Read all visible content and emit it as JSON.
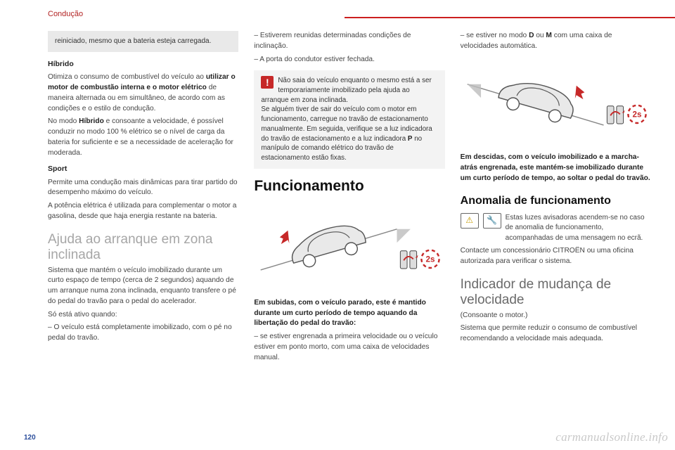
{
  "page": {
    "section_header": "Condução",
    "page_number": "120",
    "watermark": "carmanualsonline.info"
  },
  "colors": {
    "accent_red": "#cc1f1f",
    "text_red": "#b22222",
    "gray_box": "#e9e9e9",
    "warn_red": "#c62828",
    "icon_amber": "#c49a00",
    "heading_gray": "#a6a6a6",
    "page_num": "#2a4d9b"
  },
  "col1": {
    "gray1": "reiniciado, mesmo que a bateria esteja carregada.",
    "h_hibrido": "Híbrido",
    "p_hibrido1_a": "Otimiza o consumo de combustível do veículo ao ",
    "p_hibrido1_b": "utilizar o motor de combustão interna e o motor elétrico",
    "p_hibrido1_c": " de maneira alternada ou em simultâneo, de acordo com as condições e o estilo de condução.",
    "p_hibrido2_a": "No modo ",
    "p_hibrido2_b": "Híbrido",
    "p_hibrido2_c": " e consoante a velocidade, é possível conduzir no modo 100 % elétrico se o nível de carga da bateria for suficiente e se a necessidade de aceleração for moderada.",
    "h_sport": "Sport",
    "p_sport1": "Permite uma condução mais dinâmicas para tirar partido do desempenho máximo do veículo.",
    "p_sport2": "A potência elétrica é utilizada para complementar o motor a gasolina, desde que haja energia restante na bateria.",
    "h_ajuda": "Ajuda ao arranque em zona inclinada",
    "p_ajuda1": "Sistema que mantém o veículo imobilizado durante um curto espaço de tempo (cerca de 2 segundos) aquando de um arranque numa zona inclinada, enquanto transfere o pé do pedal do travão para o pedal do acelerador.",
    "p_ajuda2": "Só está ativo quando:",
    "li1": "–  O veículo está completamente imobilizado, com o pé no pedal do travão."
  },
  "col2": {
    "li2": "–  Estiverem reunidas determinadas condições de inclinação.",
    "li3": "–  A porta do condutor estiver fechada.",
    "warn_a": "Não saia do veículo enquanto o mesmo está a ser temporariamente imobilizado pela ajuda ao arranque em zona inclinada.",
    "warn_b": "Se alguém tiver de sair do veículo com o motor em funcionamento, carregue no travão de estacionamento manualmente. Em seguida, verifique se a luz indicadora do travão de estacionamento e a luz indicadora ",
    "warn_p": "P",
    "warn_c": " no manípulo de comando elétrico do travão de estacionamento estão fixas.",
    "h_func": "Funcionamento",
    "cap_up_a": "Em subidas, com o veículo parado, este é mantido durante um curto período de tempo aquando da libertação do pedal do travão:",
    "li4": "–  se estiver engrenada a primeira velocidade ou o veículo estiver em ponto morto, com uma caixa de velocidades manual.",
    "illus": {
      "direction": "up",
      "badge_text": "2s",
      "arrow_color": "#c62828",
      "car_fill": "#e9e9e9",
      "car_stroke": "#555555",
      "pedal_stroke": "#444444",
      "pedal_accent": "#c62828",
      "line_color": "#888888"
    }
  },
  "col3": {
    "li5_a": "–  se estiver no modo ",
    "li5_b": "D",
    "li5_c": " ou ",
    "li5_d": "M",
    "li5_e": " com uma caixa de velocidades automática.",
    "cap_down": "Em descidas, com o veículo imobilizado e a marcha-atrás engrenada, este mantém-se imobilizado durante um curto período de tempo, ao soltar o pedal do travão.",
    "h_anom": "Anomalia de funcionamento",
    "anom_txt": "Estas luzes avisadoras acendem-se no caso de anomalia de funcionamento, acompanhadas de uma mensagem no ecrã.",
    "anom_p2": "Contacte um concessionário CITROËN ou uma oficina autorizada para verificar o sistema.",
    "h_ind": "Indicador de mudança de velocidade",
    "ind_p1": "(Consoante o motor.)",
    "ind_p2": "Sistema que permite reduzir o consumo de combustível recomendando a velocidade mais adequada.",
    "illus": {
      "direction": "down",
      "badge_text": "2s",
      "arrow_color": "#c62828",
      "car_fill": "#e9e9e9",
      "car_stroke": "#555555",
      "pedal_stroke": "#444444",
      "pedal_accent": "#c62828",
      "line_color": "#888888"
    }
  }
}
